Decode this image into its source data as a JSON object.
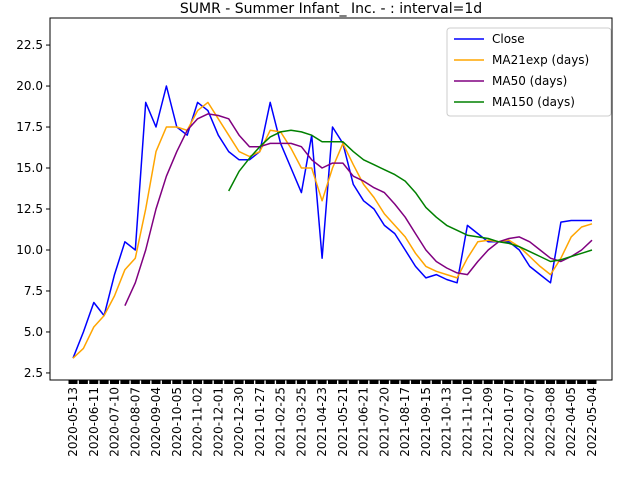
{
  "chart_data": {
    "type": "line",
    "title": "SUMR - Summer Infant_ Inc. - : interval=1d",
    "categories": [
      "2020-05-13",
      null,
      "2020-06-11",
      null,
      "2020-07-10",
      null,
      "2020-08-07",
      null,
      "2020-09-04",
      null,
      "2020-10-05",
      null,
      "2020-11-02",
      null,
      "2020-12-01",
      null,
      "2020-12-30",
      null,
      "2021-01-27",
      null,
      "2021-02-25",
      null,
      "2021-03-25",
      null,
      "2021-04-23",
      null,
      "2021-05-21",
      null,
      "2021-06-21",
      null,
      "2021-07-20",
      null,
      "2021-08-17",
      null,
      "2021-09-15",
      null,
      "2021-10-13",
      null,
      "2021-11-10",
      null,
      "2021-12-09",
      null,
      "2022-01-07",
      null,
      "2022-02-07",
      null,
      "2022-03-08",
      null,
      "2022-04-05",
      null,
      "2022-05-04"
    ],
    "series": [
      {
        "name": "Close",
        "color": "#0000ff",
        "values": [
          3.4,
          5.0,
          6.8,
          6.0,
          8.5,
          10.5,
          10.0,
          19.0,
          17.5,
          20.0,
          17.5,
          17.0,
          19.0,
          18.5,
          17.0,
          16.0,
          15.5,
          15.5,
          16.0,
          19.0,
          16.5,
          15.0,
          13.5,
          17.0,
          9.5,
          17.5,
          16.5,
          14.0,
          13.0,
          12.5,
          11.5,
          11.0,
          10.0,
          9.0,
          8.3,
          8.5,
          8.2,
          8.0,
          11.5,
          11.0,
          10.5,
          10.5,
          10.5,
          10.0,
          9.0,
          8.5,
          8.0,
          11.7,
          11.8,
          11.8,
          11.8
        ]
      },
      {
        "name": "MA21exp (days)",
        "color": "#ffa500",
        "values": [
          3.4,
          4.0,
          5.3,
          6.0,
          7.2,
          8.8,
          9.5,
          12.5,
          16.0,
          17.5,
          17.5,
          17.3,
          18.5,
          19.0,
          18.0,
          17.0,
          16.0,
          15.7,
          16.0,
          17.3,
          17.2,
          16.2,
          15.0,
          15.0,
          13.0,
          15.0,
          16.5,
          15.2,
          14.0,
          13.2,
          12.2,
          11.5,
          10.8,
          9.8,
          9.0,
          8.7,
          8.5,
          8.3,
          9.5,
          10.5,
          10.6,
          10.5,
          10.6,
          10.2,
          9.6,
          9.0,
          8.5,
          9.5,
          10.8,
          11.4,
          11.6
        ]
      },
      {
        "name": "MA50 (days)",
        "color": "#800080",
        "values": [
          null,
          null,
          null,
          null,
          null,
          6.6,
          8.0,
          10.0,
          12.5,
          14.5,
          16.0,
          17.3,
          18.0,
          18.3,
          18.2,
          18.0,
          17.0,
          16.3,
          16.3,
          16.5,
          16.5,
          16.5,
          16.3,
          15.5,
          15.0,
          15.3,
          15.3,
          14.5,
          14.2,
          13.8,
          13.5,
          12.8,
          12.0,
          11.0,
          10.0,
          9.3,
          8.9,
          8.6,
          8.5,
          9.3,
          10.0,
          10.5,
          10.7,
          10.8,
          10.5,
          10.0,
          9.5,
          9.3,
          9.6,
          10.0,
          10.6
        ]
      },
      {
        "name": "MA150 (days)",
        "color": "#008000",
        "values": [
          null,
          null,
          null,
          null,
          null,
          null,
          null,
          null,
          null,
          null,
          null,
          null,
          null,
          null,
          null,
          13.6,
          14.8,
          15.6,
          16.3,
          16.9,
          17.2,
          17.3,
          17.2,
          17.0,
          16.6,
          16.6,
          16.6,
          16.0,
          15.5,
          15.2,
          14.9,
          14.6,
          14.2,
          13.5,
          12.6,
          12.0,
          11.5,
          11.2,
          10.9,
          10.8,
          10.7,
          10.5,
          10.4,
          10.2,
          9.9,
          9.6,
          9.3,
          9.4,
          9.6,
          9.8,
          10.0
        ]
      }
    ],
    "ylim": [
      2.07,
      24.15
    ],
    "yticks": [
      2.5,
      {
        "value": 5,
        "label": "5.0"
      },
      7.5,
      {
        "value": 10,
        "label": "10.0"
      },
      12.5,
      {
        "value": 15,
        "label": "15.0"
      },
      17.5,
      {
        "value": 20,
        "label": "20.0"
      },
      22.5
    ],
    "legend": "upper right"
  }
}
